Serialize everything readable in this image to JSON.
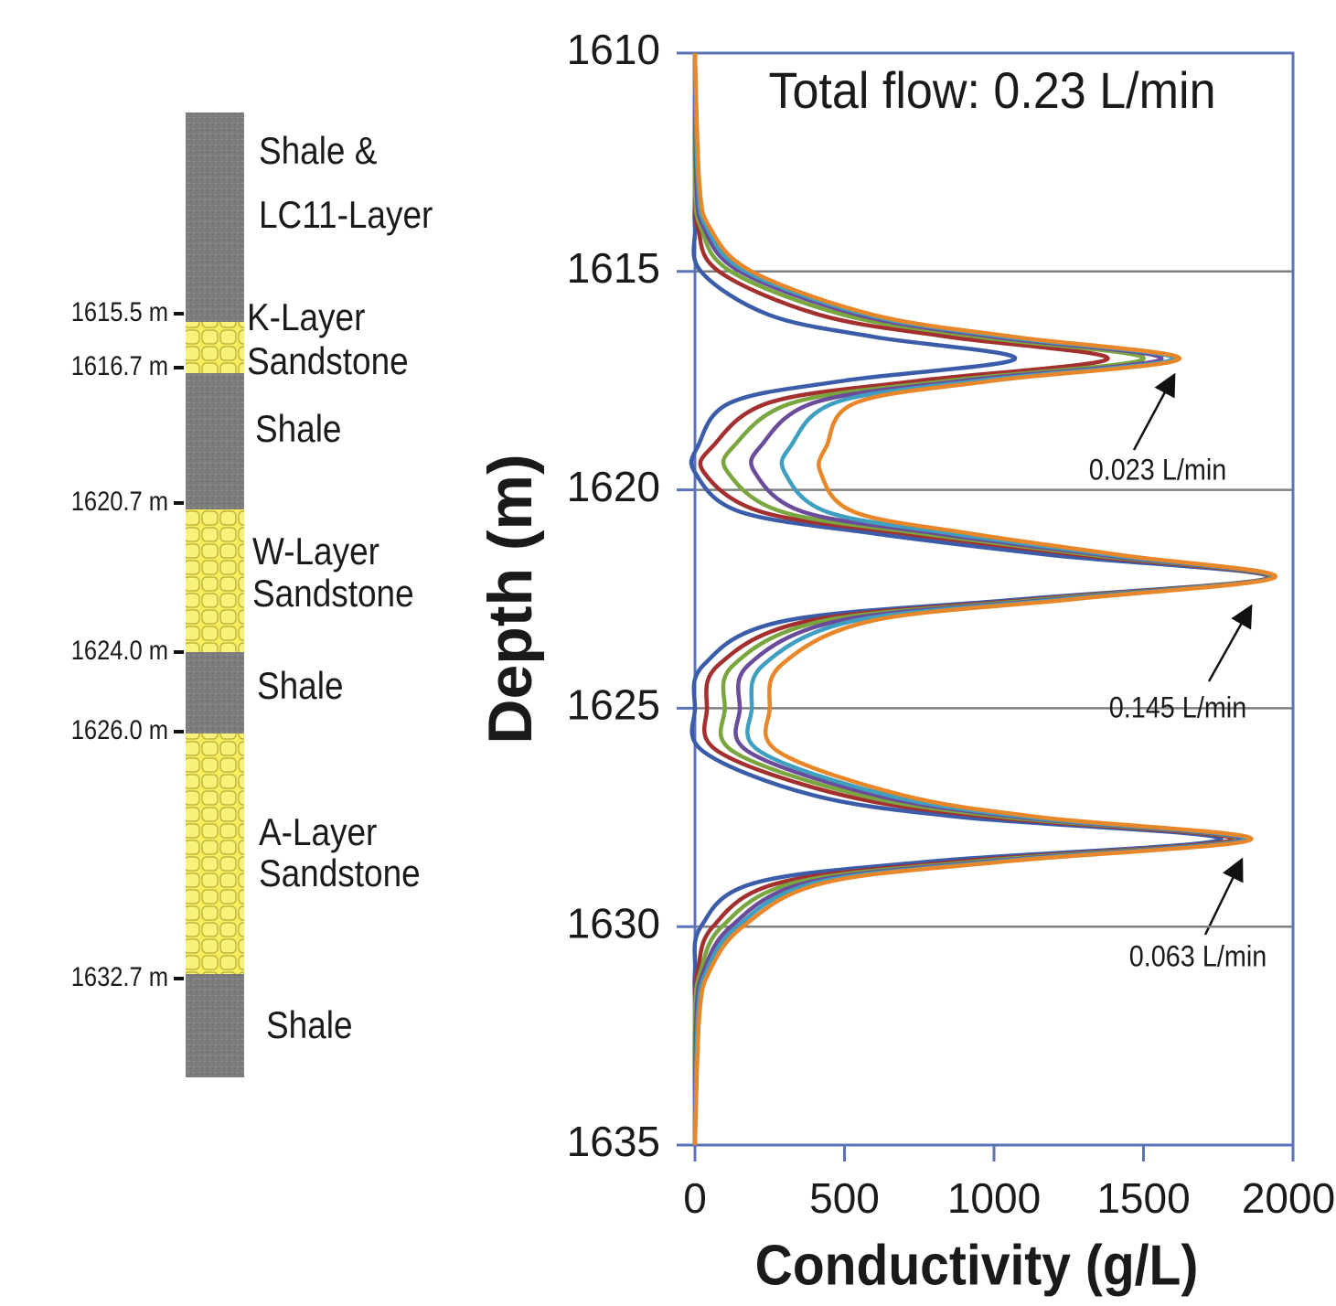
{
  "column": {
    "layers": [
      [
        "Shale &",
        "LC11-Layer"
      ],
      [
        "K-Layer",
        "Sandstone"
      ],
      [
        "Shale"
      ],
      [
        "W-Layer",
        "Sandstone"
      ],
      [
        "Shale"
      ],
      [
        "A-Layer",
        "Sandstone"
      ],
      [
        "Shale"
      ]
    ],
    "boundaries": [
      "1615.5 m",
      "1616.7 m",
      "1620.7 m",
      "1624.0 m",
      "1626.0 m",
      "1632.7 m"
    ]
  },
  "chart_data": {
    "type": "line",
    "title": "Total flow: 0.23 L/min",
    "xlabel": "Conductivity (g/L)",
    "ylabel": "Depth (m)",
    "xlim": [
      0,
      2000
    ],
    "xticks": [
      0,
      500,
      1000,
      1500,
      2000
    ],
    "ylim": [
      1610,
      1635
    ],
    "yticks": [
      1610,
      1615,
      1620,
      1625,
      1630,
      1635
    ],
    "y_inverted": true,
    "grid": true,
    "annotations": [
      "0.023 L/min",
      "0.145 L/min",
      "0.063 L/min"
    ],
    "depths": [
      1610,
      1613,
      1614,
      1615,
      1616,
      1616.5,
      1617,
      1617.5,
      1618,
      1619,
      1619.6,
      1620.5,
      1621,
      1621.5,
      1622,
      1622.5,
      1623,
      1624,
      1625,
      1626,
      1627,
      1627.5,
      1628,
      1628.5,
      1629,
      1630,
      1631,
      1632,
      1635
    ],
    "series": [
      {
        "color": "#3b5ca8",
        "values": [
          0,
          0,
          0,
          20,
          250,
          600,
          1070,
          500,
          120,
          10,
          0,
          150,
          600,
          1200,
          1920,
          1100,
          300,
          30,
          0,
          30,
          400,
          900,
          1760,
          800,
          200,
          20,
          0,
          0,
          0
        ]
      },
      {
        "color": "#a3302f",
        "values": [
          0,
          0,
          10,
          80,
          420,
          850,
          1380,
          750,
          250,
          60,
          30,
          220,
          700,
          1300,
          1925,
          1150,
          380,
          80,
          40,
          80,
          500,
          1000,
          1800,
          900,
          280,
          60,
          10,
          0,
          0
        ]
      },
      {
        "color": "#7aa640",
        "values": [
          0,
          0,
          20,
          120,
          500,
          950,
          1500,
          850,
          330,
          130,
          110,
          290,
          760,
          1340,
          1930,
          1180,
          430,
          130,
          100,
          130,
          560,
          1050,
          1820,
          950,
          330,
          90,
          20,
          0,
          0
        ]
      },
      {
        "color": "#6b4c9a",
        "values": [
          0,
          5,
          30,
          150,
          550,
          1000,
          1560,
          900,
          400,
          220,
          200,
          360,
          810,
          1370,
          1935,
          1210,
          480,
          180,
          150,
          180,
          610,
          1090,
          1830,
          990,
          370,
          120,
          30,
          5,
          0
        ]
      },
      {
        "color": "#3f9fc0",
        "values": [
          0,
          10,
          40,
          170,
          580,
          1040,
          1600,
          950,
          470,
          320,
          300,
          440,
          860,
          1400,
          1935,
          1240,
          530,
          230,
          190,
          220,
          650,
          1120,
          1845,
          1020,
          400,
          140,
          40,
          10,
          0
        ]
      },
      {
        "color": "#e8862a",
        "values": [
          0,
          15,
          50,
          190,
          600,
          1070,
          1620,
          1000,
          540,
          440,
          420,
          530,
          920,
          1430,
          1940,
          1270,
          590,
          290,
          250,
          280,
          700,
          1160,
          1860,
          1050,
          430,
          160,
          50,
          15,
          0
        ]
      }
    ]
  }
}
